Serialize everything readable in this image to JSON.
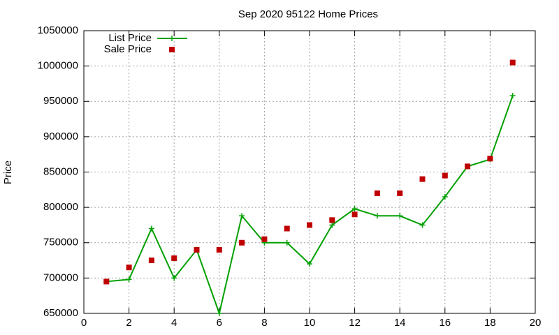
{
  "chart_data": {
    "type": "line",
    "title": "Sep 2020 95122 Home Prices",
    "y_label": "Price",
    "x": [
      1,
      2,
      3,
      4,
      5,
      6,
      7,
      8,
      9,
      10,
      11,
      12,
      13,
      14,
      15,
      16,
      17,
      18,
      19
    ],
    "series": [
      {
        "name": "List Price",
        "color": "#00a000",
        "style": "linespoints",
        "values": [
          695000,
          698000,
          770000,
          700000,
          740000,
          650000,
          788000,
          750000,
          750000,
          720000,
          775000,
          798000,
          788000,
          788000,
          775000,
          815000,
          858000,
          868000,
          958000
        ]
      },
      {
        "name": "Sale Price",
        "color": "#c00000",
        "style": "points",
        "values": [
          695000,
          715000,
          725000,
          728000,
          740000,
          740000,
          750000,
          755000,
          770000,
          775000,
          782000,
          790000,
          820000,
          820000,
          840000,
          845000,
          858000,
          869000,
          1005000
        ]
      }
    ],
    "xlim": [
      0,
      20
    ],
    "xticks": [
      0,
      2,
      4,
      6,
      8,
      10,
      12,
      14,
      16,
      18,
      20
    ],
    "ylim": [
      650000,
      1050000
    ],
    "yticks": [
      650000,
      700000,
      750000,
      800000,
      850000,
      900000,
      950000,
      1000000,
      1050000
    ],
    "grid": true,
    "legend": "top-left"
  }
}
